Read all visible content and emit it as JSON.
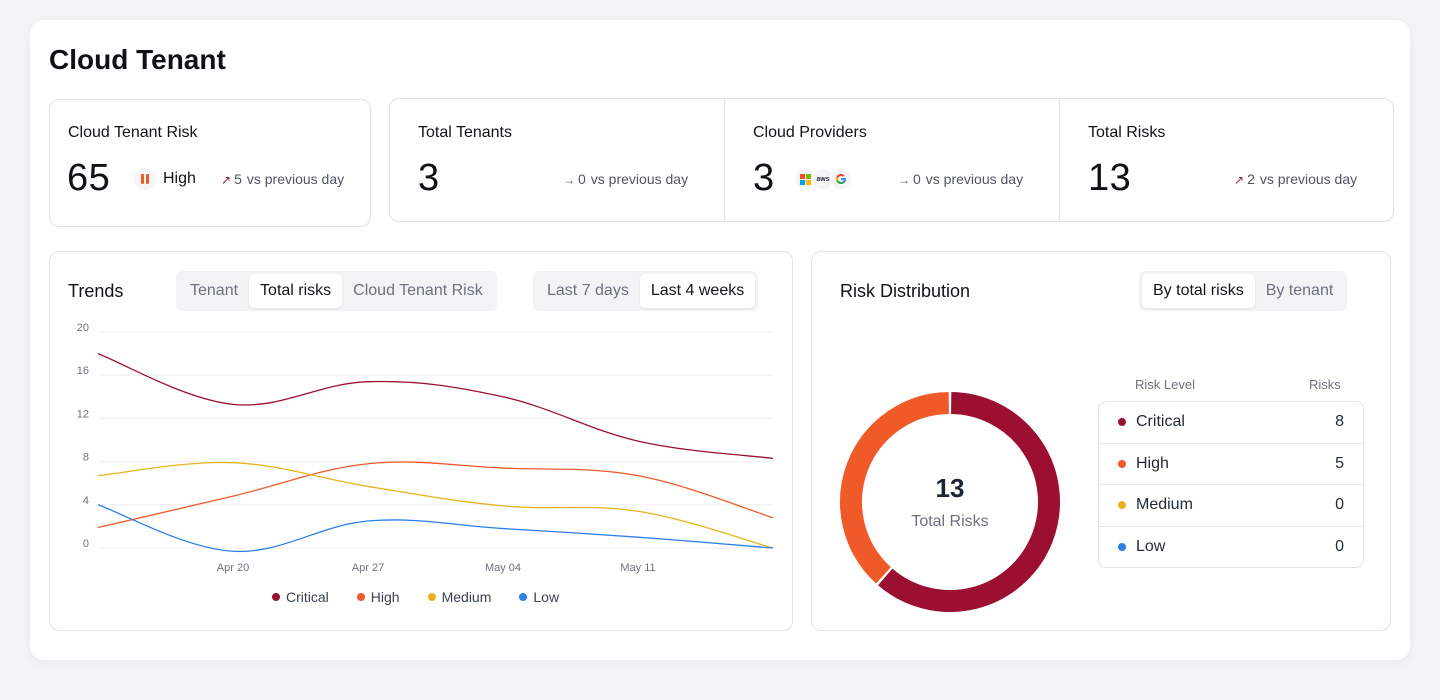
{
  "page": {
    "title": "Cloud Tenant"
  },
  "colors": {
    "critical": "#9b1030",
    "high": "#f05a28",
    "medium": "#e8b21f",
    "low": "#2b7fe8"
  },
  "risk_card": {
    "title": "Cloud Tenant Risk",
    "score": "65",
    "level": "High",
    "level_icon": "pause-bars-icon",
    "delta_arrow": "↗",
    "delta_value": "5",
    "delta_text": "vs previous day"
  },
  "stats": {
    "tenants": {
      "title": "Total Tenants",
      "value": "3",
      "delta_arrow": "→",
      "delta_value": "0",
      "delta_text": "vs previous day"
    },
    "providers": {
      "title": "Cloud Providers",
      "value": "3",
      "icons": [
        "microsoft-icon",
        "aws-icon",
        "google-icon"
      ],
      "aws_text": "aws",
      "delta_arrow": "→",
      "delta_value": "0",
      "delta_text": "vs previous day"
    },
    "risks": {
      "title": "Total Risks",
      "value": "13",
      "delta_arrow": "↗",
      "delta_value": "2",
      "delta_text": "vs previous day"
    }
  },
  "trends": {
    "title": "Trends",
    "tabs": [
      "Tenant",
      "Total risks",
      "Cloud Tenant Risk"
    ],
    "active_tab": "Total risks",
    "ranges": [
      "Last 7 days",
      "Last 4 weeks"
    ],
    "active_range": "Last 4 weeks"
  },
  "chart_data": {
    "type": "line",
    "x": [
      0,
      7,
      14,
      21,
      28,
      35
    ],
    "x_ticks": [
      {
        "x": 7,
        "label": "Apr 20"
      },
      {
        "x": 14,
        "label": "Apr 27"
      },
      {
        "x": 21,
        "label": "May 04"
      },
      {
        "x": 28,
        "label": "May 11"
      }
    ],
    "ylim": [
      0,
      20
    ],
    "y_ticks": [
      0,
      4,
      8,
      12,
      16,
      20
    ],
    "grid": true,
    "legend_position": "bottom",
    "series": [
      {
        "name": "Critical",
        "color": "#9b1030",
        "values": [
          18,
          13.3,
          15.4,
          14,
          9.9,
          8.3
        ]
      },
      {
        "name": "High",
        "color": "#f05a28",
        "values": [
          1.9,
          4.8,
          7.8,
          7.4,
          6.7,
          2.8
        ]
      },
      {
        "name": "Medium",
        "color": "#e8b21f",
        "values": [
          6.7,
          7.9,
          5.7,
          3.9,
          3.4,
          0
        ]
      },
      {
        "name": "Low",
        "color": "#2b7fe8",
        "values": [
          4,
          -0.3,
          2.5,
          1.8,
          1,
          0
        ]
      }
    ]
  },
  "distribution": {
    "title": "Risk Distribution",
    "tabs": [
      "By total risks",
      "By tenant"
    ],
    "active_tab": "By total risks",
    "total": "13",
    "total_label": "Total Risks",
    "col_level": "Risk Level",
    "col_risks": "Risks",
    "rows": [
      {
        "name": "Critical",
        "count": "8",
        "value": 8,
        "color": "#9b1030"
      },
      {
        "name": "High",
        "count": "5",
        "value": 5,
        "color": "#f05a28"
      },
      {
        "name": "Medium",
        "count": "0",
        "value": 0,
        "color": "#e8b21f"
      },
      {
        "name": "Low",
        "count": "0",
        "value": 0,
        "color": "#2b7fe8"
      }
    ]
  }
}
